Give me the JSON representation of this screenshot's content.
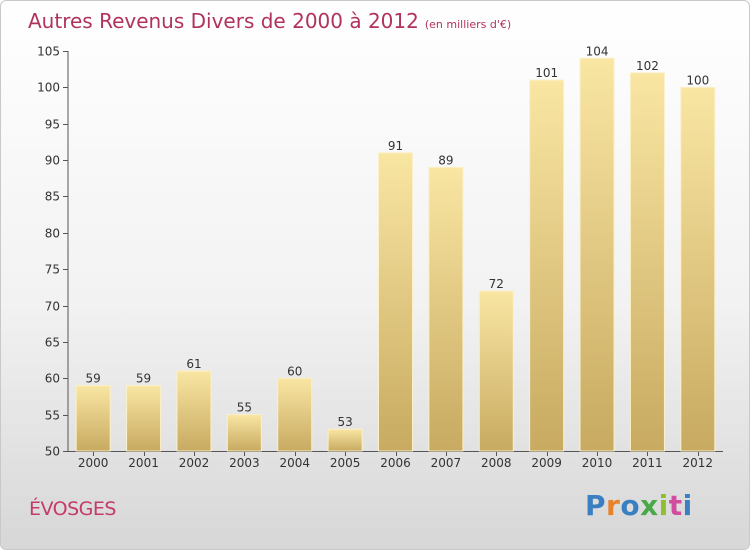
{
  "title": "Autres Revenus Divers de 2000 à 2012",
  "subtitle": "(en milliers d'€)",
  "commune": "ÉVOSGES",
  "logo": {
    "text": "Proxiti",
    "letter_colors": [
      "#3a7fc1",
      "#e8822a",
      "#3a7fc1",
      "#4aa84a",
      "#8fbf2f",
      "#d24da0",
      "#3a7fc1"
    ]
  },
  "colors": {
    "title": "#b0335f",
    "bar_light": "#f8e4a0",
    "bar_dark": "#c9ab62",
    "axis": "#555555"
  },
  "chart_data": {
    "type": "bar",
    "categories": [
      "2000",
      "2001",
      "2002",
      "2003",
      "2004",
      "2005",
      "2006",
      "2007",
      "2008",
      "2009",
      "2010",
      "2011",
      "2012"
    ],
    "values": [
      59,
      59,
      61,
      55,
      60,
      53,
      91,
      89,
      72,
      101,
      104,
      102,
      100
    ],
    "title": "Autres Revenus Divers de 2000 à 2012",
    "xlabel": "",
    "ylabel": "",
    "ylim": [
      50,
      105
    ],
    "yticks": [
      50,
      55,
      60,
      65,
      70,
      75,
      80,
      85,
      90,
      95,
      100,
      105
    ],
    "grid": false,
    "data_labels": true
  }
}
